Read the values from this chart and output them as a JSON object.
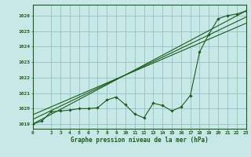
{
  "title": "Graphe pression niveau de la mer (hPa)",
  "bg_color": "#c8e8e8",
  "plot_bg_color": "#c8e8e8",
  "grid_color": "#88bbbb",
  "line_color": "#1a5c1a",
  "x_ticks": [
    0,
    2,
    3,
    4,
    5,
    6,
    7,
    8,
    9,
    10,
    11,
    12,
    13,
    14,
    15,
    16,
    17,
    18,
    19,
    20,
    21,
    22,
    23
  ],
  "xlim": [
    0,
    23
  ],
  "ylim": [
    1018.7,
    1026.7
  ],
  "yticks": [
    1019,
    1020,
    1021,
    1022,
    1023,
    1024,
    1025,
    1026
  ],
  "series1_x": [
    0,
    1,
    2,
    3,
    4,
    5,
    6,
    7,
    8,
    9,
    10,
    11,
    12,
    13,
    14,
    15,
    16,
    17,
    18,
    19,
    20,
    21,
    22,
    23
  ],
  "series1_y": [
    1019.0,
    1019.2,
    1019.8,
    1019.85,
    1019.9,
    1020.0,
    1020.0,
    1020.05,
    1020.55,
    1020.75,
    1020.25,
    1019.65,
    1019.4,
    1020.35,
    1020.2,
    1019.85,
    1020.1,
    1020.85,
    1023.65,
    1024.8,
    1025.8,
    1026.0,
    1026.1,
    1026.3
  ],
  "series2_x": [
    0,
    23
  ],
  "series2_y": [
    1019.0,
    1026.3
  ],
  "series3_x": [
    0,
    23
  ],
  "series3_y": [
    1019.3,
    1025.9
  ],
  "series4_x": [
    0,
    23
  ],
  "series4_y": [
    1019.6,
    1025.5
  ]
}
